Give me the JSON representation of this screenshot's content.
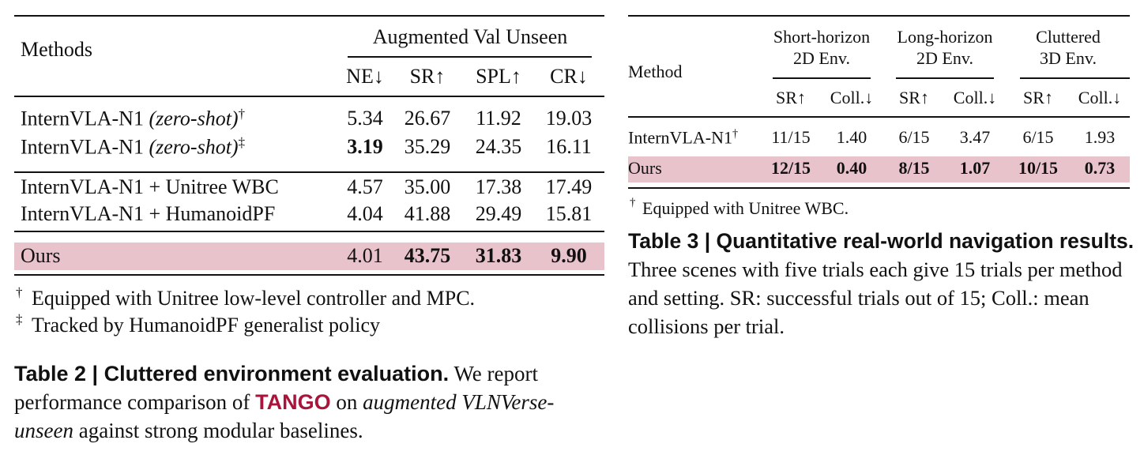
{
  "table2": {
    "header": {
      "method": "Methods",
      "group": "Augmented Val Unseen",
      "columns": [
        "NE↓",
        "SR↑",
        "SPL↑",
        "CR↓"
      ]
    },
    "rows": [
      {
        "method": "InternVLA-N1",
        "note": "(zero-shot)",
        "mark": "†",
        "values": [
          "5.34",
          "26.67",
          "11.92",
          "19.03"
        ],
        "bold": []
      },
      {
        "method": "InternVLA-N1",
        "note": "(zero-shot)",
        "mark": "‡",
        "values": [
          "3.19",
          "35.29",
          "24.35",
          "16.11"
        ],
        "bold": [
          0
        ]
      },
      {
        "method": "InternVLA-N1 + Unitree WBC",
        "values": [
          "4.57",
          "35.00",
          "17.38",
          "17.49"
        ],
        "bold": []
      },
      {
        "method": "InternVLA-N1 + HumanoidPF",
        "values": [
          "4.04",
          "41.88",
          "29.49",
          "15.81"
        ],
        "bold": []
      },
      {
        "method": "Ours",
        "values": [
          "4.01",
          "43.75",
          "31.83",
          "9.90"
        ],
        "bold": [
          1,
          2,
          3
        ],
        "highlight": true
      }
    ],
    "footnotes": [
      {
        "mark": "†",
        "text": "Equipped with Unitree low-level controller and MPC."
      },
      {
        "mark": "‡",
        "text": "Tracked by HumanoidPF generalist policy"
      }
    ],
    "caption": {
      "label": "Table 2 | Cluttered environment evaluation.",
      "text_before": "We report performance comparison of",
      "highlight": "TANGO",
      "text_middle": "on",
      "italic": "augmented VLNVerse-unseen",
      "text_after": "against strong modular baselines."
    }
  },
  "table3": {
    "header": {
      "method": "Method",
      "groups": [
        [
          "Short-horizon",
          "2D Env."
        ],
        [
          "Long-horizon",
          "2D Env."
        ],
        [
          "Cluttered",
          "3D Env."
        ]
      ],
      "columns": [
        "SR↑",
        "Coll.↓",
        "SR↑",
        "Coll.↓",
        "SR↑",
        "Coll.↓"
      ]
    },
    "rows": [
      {
        "method": "InternVLA-N1",
        "mark": "†",
        "values": [
          "11/15",
          "1.40",
          "6/15",
          "3.47",
          "6/15",
          "1.93"
        ],
        "bold": []
      },
      {
        "method": "Ours",
        "values": [
          "12/15",
          "0.40",
          "8/15",
          "1.07",
          "10/15",
          "0.73"
        ],
        "bold": [
          0,
          1,
          2,
          3,
          4,
          5
        ],
        "highlight": true
      }
    ],
    "footnotes": [
      {
        "mark": "†",
        "text": "Equipped with Unitree WBC."
      }
    ],
    "caption": {
      "label": "Table 3 | Quantitative real-world navigation results.",
      "text": "Three scenes with five trials each give 15 trials per method and setting. SR: successful trials out of 15; Coll.: mean collisions per trial."
    }
  }
}
